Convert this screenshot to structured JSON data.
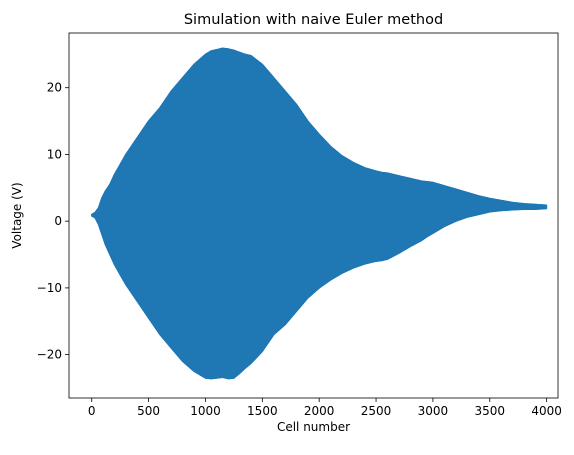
{
  "chart_data": {
    "type": "area",
    "title": "Simulation with naive Euler method",
    "xlabel": "Cell number",
    "ylabel": "Voltage (V)",
    "xlim": [
      -200,
      4100
    ],
    "ylim": [
      -26.5,
      28.2
    ],
    "xticks": [
      0,
      500,
      1000,
      1500,
      2000,
      2500,
      3000,
      3500,
      4000
    ],
    "yticks": [
      -20,
      -10,
      0,
      10,
      20
    ],
    "grid": false,
    "legend": "none",
    "color": "#1f77b4",
    "series": [
      {
        "upper": {
          "x": [
            0,
            30,
            60,
            90,
            120,
            160,
            200,
            250,
            300,
            400,
            500,
            600,
            700,
            800,
            900,
            1000,
            1050,
            1100,
            1150,
            1200,
            1250,
            1300,
            1350,
            1400,
            1500,
            1600,
            1700,
            1800,
            1900,
            2000,
            2100,
            2200,
            2300,
            2400,
            2500,
            2550,
            2600,
            2700,
            2800,
            2900,
            2950,
            3000,
            3100,
            3200,
            3300,
            3400,
            3500,
            3600,
            3700,
            3800,
            3900,
            4000
          ],
          "y": [
            1.0,
            1.3,
            2.0,
            3.5,
            4.5,
            5.5,
            7.0,
            8.5,
            10.0,
            12.5,
            15.0,
            17.0,
            19.5,
            21.5,
            23.5,
            25.0,
            25.5,
            25.7,
            25.9,
            25.8,
            25.6,
            25.3,
            25.0,
            24.8,
            23.5,
            21.5,
            19.5,
            17.5,
            15.0,
            13.0,
            11.2,
            9.8,
            8.8,
            8.0,
            7.5,
            7.3,
            7.2,
            6.8,
            6.4,
            6.0,
            5.9,
            5.8,
            5.3,
            4.8,
            4.3,
            3.8,
            3.4,
            3.1,
            2.8,
            2.6,
            2.5,
            2.4
          ]
        },
        "lower": {
          "x": [
            0,
            30,
            60,
            90,
            120,
            160,
            200,
            250,
            300,
            400,
            500,
            600,
            700,
            800,
            900,
            1000,
            1050,
            1100,
            1150,
            1200,
            1250,
            1300,
            1350,
            1400,
            1500,
            1600,
            1700,
            1800,
            1900,
            2000,
            2100,
            2200,
            2300,
            2400,
            2500,
            2550,
            2600,
            2700,
            2800,
            2900,
            2950,
            3000,
            3100,
            3200,
            3300,
            3400,
            3500,
            3600,
            3700,
            3800,
            3900,
            4000
          ],
          "y": [
            0.8,
            0.5,
            -0.5,
            -2.0,
            -3.5,
            -5.0,
            -6.5,
            -8.0,
            -9.5,
            -12.0,
            -14.5,
            -17.0,
            -19.0,
            -21.0,
            -22.5,
            -23.5,
            -23.6,
            -23.5,
            -23.4,
            -23.6,
            -23.5,
            -22.8,
            -22.0,
            -21.3,
            -19.5,
            -17.0,
            -15.5,
            -13.5,
            -11.5,
            -10.0,
            -8.8,
            -7.8,
            -7.0,
            -6.4,
            -6.0,
            -5.9,
            -5.7,
            -4.8,
            -3.8,
            -2.9,
            -2.3,
            -1.8,
            -0.8,
            0.0,
            0.6,
            1.0,
            1.4,
            1.6,
            1.7,
            1.8,
            1.8,
            1.9
          ]
        }
      }
    ]
  }
}
